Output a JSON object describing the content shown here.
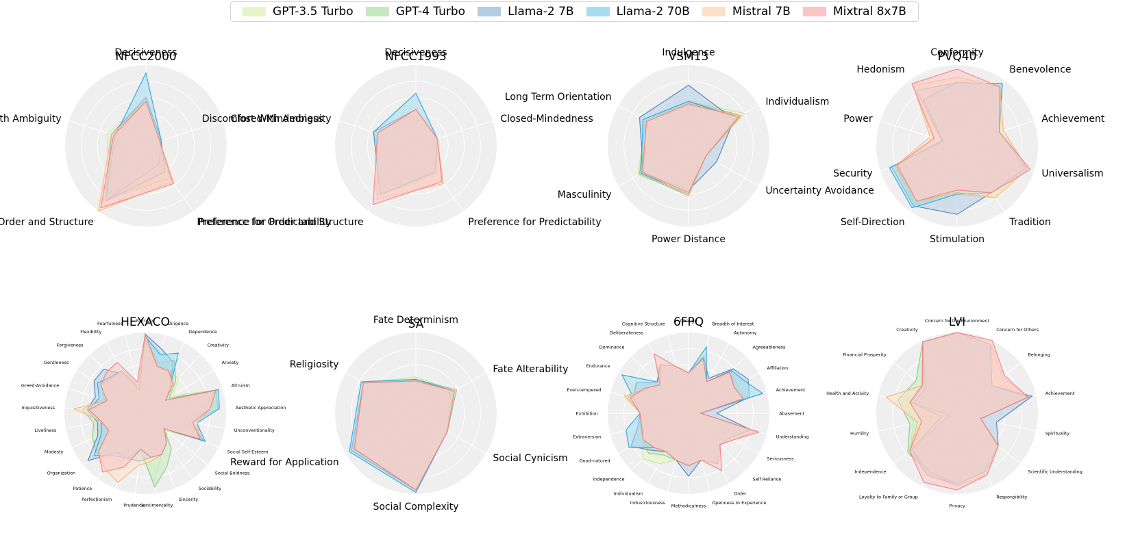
{
  "legend": [
    {
      "name": "GPT-3.5 Turbo",
      "color": "#e6f5c9"
    },
    {
      "name": "GPT-4 Turbo",
      "color": "#c7e9c0"
    },
    {
      "name": "Llama-2 7B",
      "color": "#b3cde3"
    },
    {
      "name": "Llama-2 70B",
      "color": "#a6dcef"
    },
    {
      "name": "Mistral 7B",
      "color": "#fde0c5"
    },
    {
      "name": "Mixtral 8x7B",
      "color": "#fbc4c4"
    }
  ],
  "series_stroke_colors": [
    "#c9e59a",
    "#86c98a",
    "#4a7fb8",
    "#2aa3d8",
    "#f5b47a",
    "#f08080"
  ],
  "chart_data": [
    {
      "type": "radar",
      "title": "NFCC2000",
      "rmax": 1.0,
      "grid": true,
      "axes": [
        "Decisiveness",
        "Closed-Mindedness",
        "Preference for Predictability",
        "Preference for Order and Structure",
        "Discomfort with Ambiguity"
      ],
      "series": [
        {
          "values": [
            0.55,
            0.18,
            0.55,
            0.8,
            0.5
          ]
        },
        {
          "values": [
            0.55,
            0.18,
            0.5,
            0.8,
            0.45
          ]
        },
        {
          "values": [
            0.6,
            0.2,
            0.4,
            0.85,
            0.45
          ]
        },
        {
          "values": [
            0.9,
            0.2,
            0.28,
            0.85,
            0.4
          ]
        },
        {
          "values": [
            0.55,
            0.18,
            0.55,
            1.0,
            0.45
          ]
        },
        {
          "values": [
            0.55,
            0.18,
            0.58,
            0.95,
            0.42
          ]
        }
      ]
    },
    {
      "type": "radar",
      "title": "NFCC1993",
      "rmax": 1.0,
      "grid": true,
      "axes": [
        "Decisiveness",
        "Closed-Mindedness",
        "Preference for Predictability",
        "Preference for Order and Structure",
        "Discomfort With Ambiguity"
      ],
      "series": [
        {
          "values": [
            0.45,
            0.28,
            0.45,
            0.75,
            0.5
          ]
        },
        {
          "values": [
            0.45,
            0.28,
            0.42,
            0.75,
            0.5
          ]
        },
        {
          "values": [
            0.45,
            0.28,
            0.4,
            0.75,
            0.55
          ]
        },
        {
          "values": [
            0.65,
            0.28,
            0.4,
            0.75,
            0.55
          ]
        },
        {
          "values": [
            0.45,
            0.28,
            0.58,
            0.82,
            0.5
          ]
        },
        {
          "values": [
            0.45,
            0.28,
            0.55,
            0.9,
            0.5
          ]
        }
      ]
    },
    {
      "type": "radar",
      "title": "VSM13",
      "rmax": 1.0,
      "grid": true,
      "axes": [
        "Indulgence",
        "Individualism",
        "Uncertainty Avoidance",
        "Power Distance",
        "Masculinity",
        "Long Term Orientation"
      ],
      "series": [
        {
          "values": [
            0.55,
            0.8,
            0.25,
            0.6,
            0.72,
            0.62
          ]
        },
        {
          "values": [
            0.55,
            0.75,
            0.25,
            0.62,
            0.7,
            0.62
          ]
        },
        {
          "values": [
            0.75,
            0.65,
            0.4,
            0.55,
            0.65,
            0.7
          ]
        },
        {
          "values": [
            0.55,
            0.7,
            0.25,
            0.6,
            0.68,
            0.65
          ]
        },
        {
          "values": [
            0.5,
            0.75,
            0.25,
            0.62,
            0.65,
            0.6
          ]
        },
        {
          "values": [
            0.52,
            0.72,
            0.25,
            0.58,
            0.66,
            0.6
          ]
        }
      ]
    },
    {
      "type": "radar",
      "title": "PVQ40",
      "rmax": 1.0,
      "grid": true,
      "axes": [
        "Conformity",
        "Benevolence",
        "Achievement",
        "Universalism",
        "Tradition",
        "Stimulation",
        "Self-Direction",
        "Security",
        "Power",
        "Hedonism"
      ],
      "series": [
        {
          "values": [
            0.8,
            0.9,
            0.6,
            0.9,
            0.78,
            0.6,
            0.88,
            0.82,
            0.3,
            0.6
          ]
        },
        {
          "values": [
            0.8,
            0.9,
            0.55,
            0.88,
            0.72,
            0.55,
            0.9,
            0.8,
            0.2,
            0.72
          ]
        },
        {
          "values": [
            0.78,
            0.95,
            0.55,
            0.88,
            0.72,
            0.85,
            0.92,
            0.85,
            0.2,
            0.85
          ]
        },
        {
          "values": [
            0.78,
            0.95,
            0.55,
            0.9,
            0.72,
            0.6,
            0.95,
            0.88,
            0.18,
            0.7
          ]
        },
        {
          "values": [
            0.85,
            0.9,
            0.6,
            0.92,
            0.8,
            0.58,
            0.85,
            0.8,
            0.35,
            0.92
          ]
        },
        {
          "values": [
            0.95,
            0.9,
            0.55,
            0.95,
            0.72,
            0.55,
            0.85,
            0.78,
            0.3,
            0.95
          ]
        }
      ]
    },
    {
      "type": "radar",
      "title": "HEXACO",
      "rmax": 1.0,
      "grid": true,
      "axes": [
        "Fairness",
        "Diligence",
        "Dependence",
        "Creativity",
        "Anxiety",
        "Altruism",
        "Aesthetic Appreciation",
        "Unconventionality",
        "Social Self-Esteem",
        "Social Boldness",
        "Sociability",
        "Sincerity",
        "Sentimentality",
        "Prudence",
        "Perfectionism",
        "Patience",
        "Organization",
        "Modesty",
        "Liveliness",
        "Inquisitiveness",
        "Greed-Avoidance",
        "Gentleness",
        "Forgiveness",
        "Flexibility",
        "Fearfulness"
      ],
      "series": [
        {
          "values": [
            0.98,
            0.6,
            0.6,
            0.6,
            0.4,
            0.95,
            0.8,
            0.6,
            0.75,
            0.35,
            0.45,
            0.55,
            0.85,
            0.5,
            0.6,
            0.6,
            0.78,
            0.5,
            0.55,
            0.7,
            0.5,
            0.55,
            0.6,
            0.6,
            0.3
          ]
        },
        {
          "values": [
            0.95,
            0.65,
            0.75,
            0.55,
            0.35,
            0.92,
            0.9,
            0.6,
            0.78,
            0.3,
            0.55,
            0.72,
            0.92,
            0.45,
            0.6,
            0.6,
            0.78,
            0.72,
            0.65,
            0.78,
            0.55,
            0.6,
            0.6,
            0.6,
            0.3
          ]
        },
        {
          "values": [
            0.98,
            0.82,
            0.72,
            0.45,
            0.3,
            0.9,
            0.75,
            0.55,
            0.8,
            0.3,
            0.45,
            0.55,
            0.55,
            0.6,
            0.6,
            0.6,
            0.92,
            0.65,
            0.6,
            0.72,
            0.65,
            0.75,
            0.75,
            0.55,
            0.3
          ]
        },
        {
          "values": [
            0.95,
            0.75,
            0.85,
            0.45,
            0.3,
            0.95,
            0.92,
            0.65,
            0.82,
            0.3,
            0.45,
            0.55,
            0.55,
            0.45,
            0.6,
            0.65,
            0.82,
            0.6,
            0.55,
            0.7,
            0.6,
            0.7,
            0.62,
            0.6,
            0.3
          ]
        },
        {
          "values": [
            0.9,
            0.6,
            0.6,
            0.5,
            0.3,
            0.92,
            0.8,
            0.65,
            0.75,
            0.3,
            0.45,
            0.55,
            0.6,
            0.65,
            0.92,
            0.85,
            0.75,
            0.5,
            0.55,
            0.88,
            0.5,
            0.65,
            0.6,
            0.6,
            0.35
          ]
        },
        {
          "values": [
            0.98,
            0.6,
            0.6,
            0.5,
            0.3,
            0.92,
            0.8,
            0.6,
            0.75,
            0.3,
            0.45,
            0.55,
            0.55,
            0.45,
            0.72,
            0.9,
            0.75,
            0.5,
            0.55,
            0.7,
            0.5,
            0.65,
            0.7,
            0.72,
            0.4
          ]
        }
      ]
    },
    {
      "type": "radar",
      "title": "SA",
      "rmax": 1.0,
      "grid": true,
      "axes": [
        "Fate Determinism",
        "Fate Alterability",
        "Social Cynicism",
        "Social Complexity",
        "Reward for Application",
        "Religiosity"
      ],
      "series": [
        {
          "values": [
            0.45,
            0.55,
            0.45,
            0.95,
            0.88,
            0.75
          ]
        },
        {
          "values": [
            0.42,
            0.58,
            0.45,
            0.95,
            0.88,
            0.75
          ]
        },
        {
          "values": [
            0.4,
            0.5,
            0.45,
            0.95,
            0.92,
            0.75
          ]
        },
        {
          "values": [
            0.42,
            0.55,
            0.45,
            0.98,
            0.95,
            0.78
          ]
        },
        {
          "values": [
            0.4,
            0.55,
            0.45,
            0.95,
            0.88,
            0.75
          ]
        },
        {
          "values": [
            0.4,
            0.55,
            0.45,
            0.95,
            0.88,
            0.75
          ]
        }
      ]
    },
    {
      "type": "radar",
      "title": "6FPQ",
      "rmax": 1.0,
      "grid": true,
      "axes": [
        "Change",
        "Breadth of Interest",
        "Autonomy",
        "Agreeableness",
        "Affiliation",
        "Achievement",
        "Abasement",
        "Understanding",
        "Seriousness",
        "Self Reliance",
        "Order",
        "Openness to Experience",
        "Methodicalness",
        "Industriousness",
        "Individualism",
        "Independence",
        "Good-natured",
        "Extraversion",
        "Exhibition",
        "Even-tempered",
        "Endurance",
        "Dominance",
        "Deliberateness",
        "Cognitive Structure"
      ],
      "series": [
        {
          "values": [
            0.5,
            0.75,
            0.45,
            0.75,
            0.7,
            0.75,
            0.15,
            0.8,
            0.6,
            0.55,
            0.7,
            0.6,
            0.65,
            0.6,
            0.72,
            0.8,
            0.65,
            0.6,
            0.6,
            0.8,
            0.6,
            0.5,
            0.7,
            0.6
          ]
        },
        {
          "values": [
            0.5,
            0.7,
            0.45,
            0.75,
            0.65,
            0.7,
            0.15,
            0.8,
            0.6,
            0.55,
            0.72,
            0.6,
            0.65,
            0.6,
            0.6,
            0.7,
            0.65,
            0.62,
            0.6,
            0.78,
            0.6,
            0.5,
            0.7,
            0.6
          ]
        },
        {
          "values": [
            0.5,
            0.72,
            0.5,
            0.78,
            0.85,
            0.78,
            0.35,
            0.8,
            0.6,
            0.55,
            0.72,
            0.6,
            0.78,
            0.6,
            0.55,
            0.65,
            0.82,
            0.65,
            0.6,
            0.7,
            0.75,
            0.55,
            0.7,
            0.6
          ]
        },
        {
          "values": [
            0.5,
            0.85,
            0.45,
            0.75,
            0.8,
            0.95,
            0.15,
            0.8,
            0.6,
            0.55,
            0.72,
            0.6,
            0.65,
            0.6,
            0.55,
            0.6,
            0.85,
            0.8,
            0.6,
            0.7,
            0.95,
            0.55,
            0.7,
            0.6
          ]
        },
        {
          "values": [
            0.5,
            0.7,
            0.45,
            0.72,
            0.65,
            0.7,
            0.15,
            0.85,
            0.65,
            0.55,
            0.72,
            0.6,
            0.65,
            0.6,
            0.55,
            0.6,
            0.65,
            0.6,
            0.6,
            0.82,
            0.6,
            0.5,
            0.7,
            0.6
          ]
        },
        {
          "values": [
            0.5,
            0.7,
            0.45,
            0.72,
            0.65,
            0.7,
            0.15,
            0.9,
            0.65,
            0.55,
            0.82,
            0.6,
            0.65,
            0.6,
            0.55,
            0.6,
            0.65,
            0.6,
            0.6,
            0.75,
            0.62,
            0.5,
            0.85,
            0.6
          ]
        }
      ]
    },
    {
      "type": "radar",
      "title": "LVI",
      "rmax": 1.0,
      "grid": true,
      "axes": [
        "Concern for the Environment",
        "Concern for Others",
        "Belonging",
        "Achievement",
        "Spirituality",
        "Scientific Understanding",
        "Responsibility",
        "Privacy",
        "Loyalty to Family or Group",
        "Independence",
        "Humility",
        "Health and Activity",
        "Financial Prosperity",
        "Creativity"
      ],
      "series": [
        {
          "values": [
            1.0,
            0.95,
            0.6,
            0.9,
            0.3,
            0.65,
            0.8,
            0.88,
            0.8,
            0.75,
            0.55,
            0.65,
            0.55,
            0.98
          ]
        },
        {
          "values": [
            1.0,
            0.95,
            0.55,
            0.92,
            0.3,
            0.65,
            0.8,
            0.88,
            0.82,
            0.78,
            0.6,
            0.75,
            0.65,
            0.98
          ]
        },
        {
          "values": [
            1.0,
            0.95,
            0.55,
            0.95,
            0.5,
            0.65,
            0.8,
            0.88,
            0.85,
            0.72,
            0.1,
            0.6,
            0.55,
            0.98
          ]
        },
        {
          "values": [
            1.0,
            0.95,
            0.55,
            0.9,
            0.3,
            0.65,
            0.8,
            0.88,
            0.8,
            0.72,
            0.2,
            0.55,
            0.5,
            0.98
          ]
        },
        {
          "values": [
            1.0,
            0.95,
            0.72,
            0.9,
            0.3,
            0.65,
            0.85,
            0.9,
            0.85,
            0.75,
            0.5,
            0.9,
            0.55,
            0.98
          ]
        },
        {
          "values": [
            1.0,
            1.0,
            0.75,
            0.9,
            0.3,
            0.65,
            0.85,
            0.95,
            0.95,
            0.75,
            0.45,
            0.6,
            0.55,
            0.98
          ]
        }
      ]
    }
  ]
}
